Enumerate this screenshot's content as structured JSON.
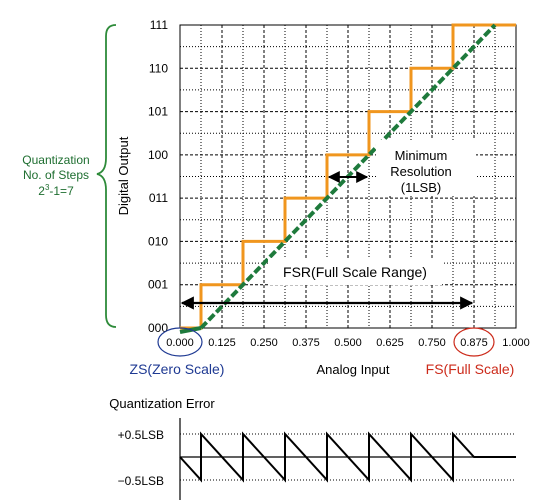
{
  "colors": {
    "staircase": "#f0961e",
    "ideal_line": "#1e7a3c",
    "brace": "#2e8b3a",
    "quantization_text": "#1e6e30",
    "zero_scale": "#1f3a93",
    "full_scale": "#cc2a1a",
    "grid_major": "#000000",
    "grid_minor": "#000000"
  },
  "labels": {
    "quantization_line1": "Quantization",
    "quantization_line2": "No. of Steps",
    "quantization_formula_base": "2",
    "quantization_formula_exp": "3",
    "quantization_formula_rest": "-1=7",
    "digital_output": "Digital Output",
    "minimum_line1": "Minimum",
    "minimum_line2": "Resolution",
    "minimum_line3": "(1LSB)",
    "fsr": "FSR(Full Scale Range)",
    "zero_scale": "ZS(Zero Scale)",
    "analog_input": "Analog Input",
    "full_scale": "FS(Full Scale)",
    "quantization_error": "Quantization Error",
    "plus_half_lsb": "+0.5LSB",
    "minus_half_lsb": "−0.5LSB"
  },
  "chart_data": {
    "type": "line",
    "x_ticks": [
      "0.000",
      "0.125",
      "0.250",
      "0.375",
      "0.500",
      "0.625",
      "0.750",
      "0.875",
      "1.000"
    ],
    "y_ticks": [
      "000",
      "001",
      "010",
      "011",
      "100",
      "101",
      "110",
      "111"
    ],
    "bits": 3,
    "steps": 7,
    "xlim": [
      0,
      1
    ],
    "ylim": [
      0,
      7
    ],
    "ideal_line": {
      "x": [
        0,
        1
      ],
      "y": [
        -0.5,
        7.5
      ]
    },
    "transitions": [
      0.0625,
      0.1875,
      0.3125,
      0.4375,
      0.5625,
      0.6875,
      0.8125
    ],
    "staircase": {
      "x": [
        0,
        0.0625,
        0.0625,
        0.1875,
        0.1875,
        0.3125,
        0.3125,
        0.4375,
        0.4375,
        0.5625,
        0.5625,
        0.6875,
        0.6875,
        0.8125,
        0.8125,
        1.0
      ],
      "y": [
        0,
        0,
        1,
        1,
        2,
        2,
        3,
        3,
        4,
        4,
        5,
        5,
        6,
        6,
        7,
        7
      ]
    },
    "fsr_range": [
      0,
      0.875
    ],
    "lsb_marker_range": [
      0.4375,
      0.5625
    ],
    "error": {
      "ylim": [
        -0.5,
        0.5
      ],
      "x": [
        0,
        0.0625,
        0.0625,
        0.1875,
        0.1875,
        0.3125,
        0.3125,
        0.4375,
        0.4375,
        0.5625,
        0.5625,
        0.6875,
        0.6875,
        0.8125,
        0.8125,
        0.875,
        1.0
      ],
      "y": [
        0,
        -0.5,
        0.5,
        -0.5,
        0.5,
        -0.5,
        0.5,
        -0.5,
        0.5,
        -0.5,
        0.5,
        -0.5,
        0.5,
        -0.5,
        0.5,
        0,
        0
      ]
    }
  }
}
